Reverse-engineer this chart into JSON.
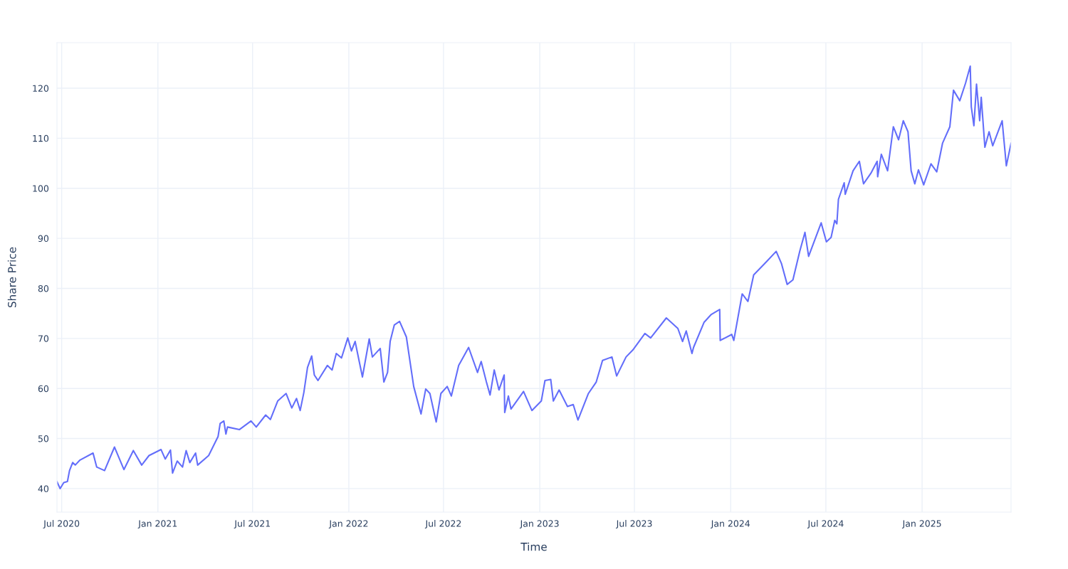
{
  "chart_data": {
    "type": "line",
    "xlabel": "Time",
    "ylabel": "Share Price",
    "grid": true,
    "marker": "none",
    "line_style": "solid",
    "xlim": [
      "2020-06-22",
      "2025-06-20"
    ],
    "ylim": [
      35.3,
      129.1
    ],
    "yticks": [
      40,
      50,
      60,
      70,
      80,
      90,
      100,
      110,
      120
    ],
    "xticks": [
      {
        "value": "2020-07-01",
        "label": "Jul 2020"
      },
      {
        "value": "2021-01-01",
        "label": "Jan 2021"
      },
      {
        "value": "2021-07-01",
        "label": "Jul 2021"
      },
      {
        "value": "2022-01-01",
        "label": "Jan 2022"
      },
      {
        "value": "2022-07-01",
        "label": "Jul 2022"
      },
      {
        "value": "2023-01-01",
        "label": "Jan 2023"
      },
      {
        "value": "2023-07-01",
        "label": "Jul 2023"
      },
      {
        "value": "2024-01-01",
        "label": "Jan 2024"
      },
      {
        "value": "2024-07-01",
        "label": "Jul 2024"
      },
      {
        "value": "2025-01-01",
        "label": "Jan 2025"
      }
    ],
    "x": [
      "2020-06-22",
      "2020-06-28",
      "2020-07-05",
      "2020-07-12",
      "2020-07-16",
      "2020-07-22",
      "2020-07-27",
      "2020-08-05",
      "2020-08-30",
      "2020-09-06",
      "2020-09-21",
      "2020-10-10",
      "2020-10-28",
      "2020-11-15",
      "2020-12-01",
      "2020-12-15",
      "2021-01-07",
      "2021-01-15",
      "2021-01-25",
      "2021-01-29",
      "2021-02-07",
      "2021-02-17",
      "2021-02-24",
      "2021-03-03",
      "2021-03-14",
      "2021-03-18",
      "2021-04-08",
      "2021-04-26",
      "2021-04-30",
      "2021-05-07",
      "2021-05-11",
      "2021-05-14",
      "2021-06-06",
      "2021-06-28",
      "2021-07-08",
      "2021-07-26",
      "2021-08-04",
      "2021-08-18",
      "2021-09-03",
      "2021-09-14",
      "2021-09-23",
      "2021-09-30",
      "2021-10-07",
      "2021-10-14",
      "2021-10-22",
      "2021-10-27",
      "2021-11-03",
      "2021-11-21",
      "2021-11-30",
      "2021-12-08",
      "2021-12-18",
      "2021-12-30",
      "2022-01-06",
      "2022-01-13",
      "2022-01-27",
      "2022-02-09",
      "2022-02-15",
      "2022-03-02",
      "2022-03-09",
      "2022-03-16",
      "2022-03-21",
      "2022-03-29",
      "2022-04-08",
      "2022-04-21",
      "2022-05-05",
      "2022-05-19",
      "2022-05-28",
      "2022-06-05",
      "2022-06-17",
      "2022-06-26",
      "2022-07-08",
      "2022-07-16",
      "2022-07-30",
      "2022-08-18",
      "2022-09-04",
      "2022-09-11",
      "2022-09-21",
      "2022-09-28",
      "2022-10-06",
      "2022-10-15",
      "2022-10-25",
      "2022-10-26",
      "2022-11-02",
      "2022-11-07",
      "2022-12-01",
      "2022-12-17",
      "2023-01-04",
      "2023-01-11",
      "2023-01-22",
      "2023-01-27",
      "2023-02-07",
      "2023-02-23",
      "2023-03-06",
      "2023-03-15",
      "2023-04-04",
      "2023-04-19",
      "2023-05-01",
      "2023-05-19",
      "2023-05-28",
      "2023-06-15",
      "2023-06-28",
      "2023-07-21",
      "2023-08-01",
      "2023-08-31",
      "2023-09-22",
      "2023-10-01",
      "2023-10-08",
      "2023-10-19",
      "2023-10-22",
      "2023-11-11",
      "2023-11-25",
      "2023-12-11",
      "2023-12-12",
      "2024-01-03",
      "2024-01-07",
      "2024-01-23",
      "2024-02-03",
      "2024-02-14",
      "2024-03-11",
      "2024-03-28",
      "2024-04-07",
      "2024-04-18",
      "2024-04-29",
      "2024-05-12",
      "2024-05-22",
      "2024-05-29",
      "2024-06-22",
      "2024-07-02",
      "2024-07-11",
      "2024-07-18",
      "2024-07-22",
      "2024-07-25",
      "2024-08-05",
      "2024-08-07",
      "2024-08-22",
      "2024-09-03",
      "2024-09-11",
      "2024-09-25",
      "2024-10-07",
      "2024-10-08",
      "2024-10-15",
      "2024-10-27",
      "2024-11-07",
      "2024-11-17",
      "2024-11-26",
      "2024-12-05",
      "2024-12-11",
      "2024-12-18",
      "2024-12-25",
      "2025-01-04",
      "2025-01-18",
      "2025-01-29",
      "2025-02-09",
      "2025-02-23",
      "2025-03-02",
      "2025-03-14",
      "2025-03-25",
      "2025-04-03",
      "2025-04-05",
      "2025-04-10",
      "2025-04-15",
      "2025-04-21",
      "2025-04-24",
      "2025-05-01",
      "2025-05-09",
      "2025-05-16",
      "2025-06-03",
      "2025-06-11",
      "2025-06-20"
    ],
    "series": [
      {
        "color": "#636efa",
        "values": [
          41.4,
          40.0,
          41.2,
          41.4,
          43.6,
          45.2,
          44.7,
          45.7,
          47.1,
          44.3,
          43.6,
          48.3,
          43.8,
          47.6,
          44.7,
          46.6,
          47.8,
          45.9,
          47.7,
          43.1,
          45.5,
          44.3,
          47.6,
          45.2,
          47.1,
          44.7,
          46.6,
          50.4,
          53.0,
          53.5,
          50.9,
          52.3,
          51.8,
          53.5,
          52.3,
          54.7,
          53.8,
          57.5,
          59.0,
          56.1,
          58.0,
          55.6,
          59.2,
          64.2,
          66.5,
          62.7,
          61.6,
          64.6,
          63.7,
          67.0,
          66.1,
          70.1,
          67.5,
          69.4,
          62.3,
          69.9,
          66.3,
          68.0,
          61.3,
          63.2,
          69.4,
          72.7,
          73.4,
          70.3,
          60.4,
          54.9,
          59.9,
          59.0,
          53.3,
          59.0,
          60.4,
          58.5,
          64.6,
          68.2,
          63.2,
          65.4,
          61.3,
          58.7,
          63.7,
          59.7,
          62.7,
          55.2,
          58.5,
          55.9,
          59.4,
          55.6,
          57.5,
          61.6,
          61.8,
          57.5,
          59.7,
          56.4,
          56.8,
          53.7,
          59.0,
          61.3,
          65.6,
          66.3,
          62.5,
          66.3,
          67.7,
          71.0,
          70.1,
          74.1,
          72.0,
          69.4,
          71.5,
          67.0,
          68.2,
          73.2,
          74.8,
          75.8,
          69.6,
          70.8,
          69.6,
          78.9,
          77.4,
          82.7,
          85.5,
          87.4,
          85.0,
          80.8,
          81.7,
          87.4,
          91.2,
          86.4,
          93.1,
          89.3,
          90.2,
          93.6,
          92.9,
          97.8,
          101.1,
          98.8,
          103.5,
          105.4,
          100.9,
          103.0,
          105.4,
          102.3,
          106.8,
          103.5,
          112.3,
          109.7,
          113.5,
          111.3,
          103.5,
          100.9,
          103.7,
          100.7,
          104.9,
          103.3,
          109.0,
          112.3,
          119.6,
          117.5,
          121.0,
          124.4,
          116.3,
          112.5,
          120.8,
          113.5,
          118.2,
          108.2,
          111.3,
          108.5,
          113.5,
          104.5,
          109.0
        ]
      }
    ]
  }
}
